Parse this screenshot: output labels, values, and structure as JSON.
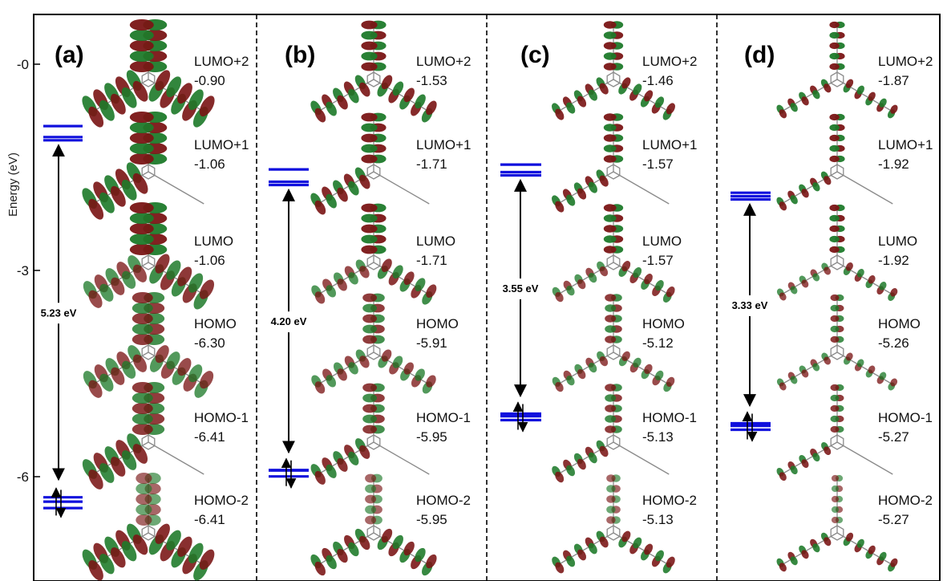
{
  "axis": {
    "title": "Energy (eV)",
    "ticks": [
      {
        "value": 0,
        "label": "-0"
      },
      {
        "value": -3,
        "label": "-3"
      },
      {
        "value": -6,
        "label": "-6"
      }
    ]
  },
  "panels": [
    {
      "label": "(a)",
      "gap": "5.23 eV",
      "lumo_levels": [
        -1.06,
        -1.06,
        -0.9
      ],
      "homo_levels": [
        -6.3,
        -6.41,
        -6.41
      ],
      "orbitals": [
        {
          "name": "LUMO+2",
          "energy": "-0.90"
        },
        {
          "name": "LUMO+1",
          "energy": "-1.06"
        },
        {
          "name": "LUMO",
          "energy": "-1.06"
        },
        {
          "name": "HOMO",
          "energy": "-6.30"
        },
        {
          "name": "HOMO-1",
          "energy": "-6.41"
        },
        {
          "name": "HOMO-2",
          "energy": "-6.41"
        }
      ]
    },
    {
      "label": "(b)",
      "gap": "4.20 eV",
      "lumo_levels": [
        -1.71,
        -1.71,
        -1.53
      ],
      "homo_levels": [
        -5.91,
        -5.95,
        -5.95
      ],
      "orbitals": [
        {
          "name": "LUMO+2",
          "energy": "-1.53"
        },
        {
          "name": "LUMO+1",
          "energy": "-1.71"
        },
        {
          "name": "LUMO",
          "energy": "-1.71"
        },
        {
          "name": "HOMO",
          "energy": "-5.91"
        },
        {
          "name": "HOMO-1",
          "energy": "-5.95"
        },
        {
          "name": "HOMO-2",
          "energy": "-5.95"
        }
      ]
    },
    {
      "label": "(c)",
      "gap": "3.55 eV",
      "lumo_levels": [
        -1.57,
        -1.57,
        -1.46
      ],
      "homo_levels": [
        -5.12,
        -5.13,
        -5.13
      ],
      "orbitals": [
        {
          "name": "LUMO+2",
          "energy": "-1.46"
        },
        {
          "name": "LUMO+1",
          "energy": "-1.57"
        },
        {
          "name": "LUMO",
          "energy": "-1.57"
        },
        {
          "name": "HOMO",
          "energy": "-5.12"
        },
        {
          "name": "HOMO-1",
          "energy": "-5.13"
        },
        {
          "name": "HOMO-2",
          "energy": "-5.13"
        }
      ]
    },
    {
      "label": "(d)",
      "gap": "3.33 eV",
      "lumo_levels": [
        -1.92,
        -1.92,
        -1.87
      ],
      "homo_levels": [
        -5.26,
        -5.27,
        -5.27
      ],
      "orbitals": [
        {
          "name": "LUMO+2",
          "energy": "-1.87"
        },
        {
          "name": "LUMO+1",
          "energy": "-1.92"
        },
        {
          "name": "LUMO",
          "energy": "-1.92"
        },
        {
          "name": "HOMO",
          "energy": "-5.26"
        },
        {
          "name": "HOMO-1",
          "energy": "-5.27"
        },
        {
          "name": "HOMO-2",
          "energy": "-5.27"
        }
      ]
    }
  ],
  "colors": {
    "level": "#1010dd",
    "lobe_red": "#7a1515",
    "lobe_green": "#1e7a2a",
    "skeleton": "#8a8a8a",
    "frame": "#000000"
  }
}
